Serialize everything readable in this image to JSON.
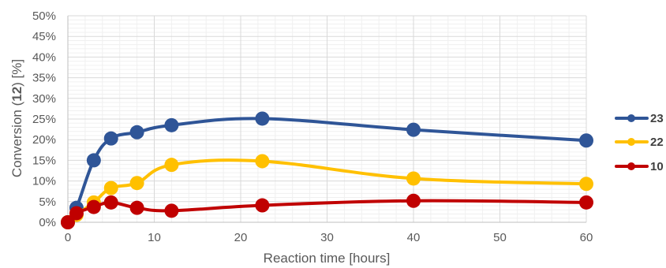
{
  "chart_data": {
    "type": "line",
    "xlabel": "Reaction time [hours]",
    "ylabel": {
      "prefix": "Conversion (",
      "bold": "12",
      "suffix": ") [%]"
    },
    "xlim": [
      0,
      60
    ],
    "ylim": [
      0,
      50
    ],
    "x_ticks": [
      0,
      10,
      20,
      30,
      40,
      50,
      60
    ],
    "y_ticks": [
      0,
      5,
      10,
      15,
      20,
      25,
      30,
      35,
      40,
      45,
      50
    ],
    "y_tick_labels": [
      "0%",
      "5%",
      "10%",
      "15%",
      "20%",
      "25%",
      "30%",
      "35%",
      "40%",
      "45%",
      "50%"
    ],
    "grid": true,
    "smooth": true,
    "legend_position": "right",
    "series": [
      {
        "name": "23",
        "color": "#2F5597",
        "x": [
          0,
          1,
          3,
          5,
          8,
          12,
          22.5,
          40,
          60
        ],
        "y": [
          0,
          3.5,
          15.0,
          20.3,
          21.8,
          23.5,
          25.1,
          22.4,
          19.8
        ]
      },
      {
        "name": "22",
        "color": "#FFC000",
        "x": [
          0,
          1,
          3,
          5,
          8,
          12,
          22.5,
          40,
          60
        ],
        "y": [
          0,
          1.8,
          4.8,
          8.3,
          9.5,
          13.9,
          14.8,
          10.6,
          9.3
        ]
      },
      {
        "name": "10",
        "color": "#C00000",
        "x": [
          0,
          1,
          3,
          5,
          8,
          12,
          22.5,
          40,
          60
        ],
        "y": [
          0,
          2.2,
          3.7,
          4.8,
          3.5,
          2.8,
          4.1,
          5.2,
          4.8
        ]
      }
    ]
  }
}
